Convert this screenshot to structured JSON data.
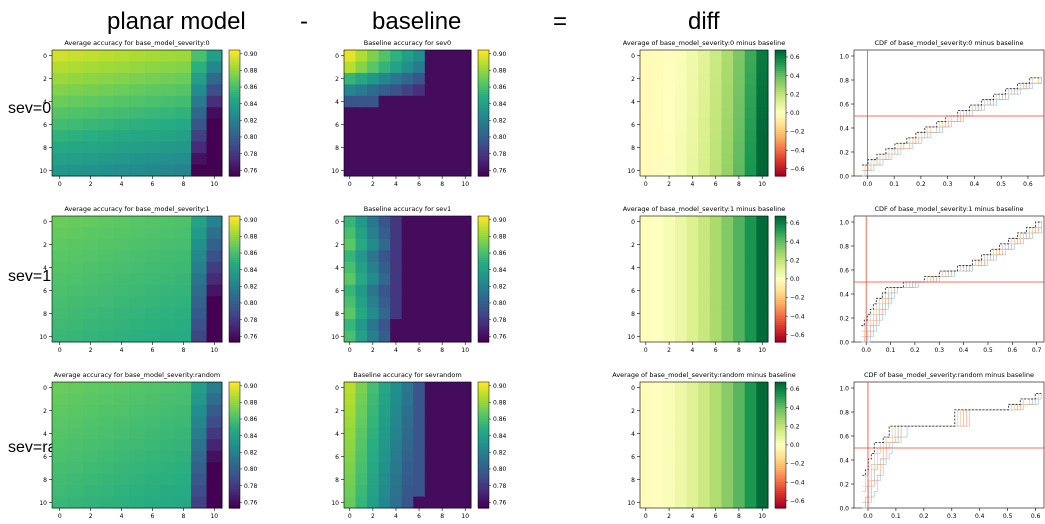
{
  "headers": {
    "planar": "planar model",
    "minus": "-",
    "baseline": "baseline",
    "equals": "=",
    "diff": "diff"
  },
  "rows": [
    {
      "label": "sev=0"
    },
    {
      "label": "sev=1"
    },
    {
      "label": "sev=rand"
    }
  ],
  "chart_data": [
    {
      "type": "heatmap",
      "panel": "planar-sev0",
      "title": "Average accuracy for base_model_severity:0",
      "cmap": "viridis",
      "clim": [
        0.75,
        0.9
      ],
      "colorbar_ticks": [
        "0.90",
        "0.88",
        "0.86",
        "0.84",
        "0.82",
        "0.80",
        "0.78",
        "0.76"
      ],
      "x_ticks": [
        "0",
        "2",
        "4",
        "6",
        "8",
        "10"
      ],
      "y_ticks": [
        "0",
        "2",
        "4",
        "6",
        "8",
        "10"
      ]
    },
    {
      "type": "heatmap",
      "panel": "baseline-sev0",
      "title": "Baseline accuracy for sev0",
      "cmap": "viridis",
      "clim": [
        0.75,
        0.9
      ],
      "colorbar_ticks": [
        "0.90",
        "0.88",
        "0.86",
        "0.84",
        "0.82",
        "0.80",
        "0.78",
        "0.76"
      ],
      "x_ticks": [
        "0",
        "2",
        "4",
        "6",
        "8",
        "10"
      ],
      "y_ticks": [
        "0",
        "2",
        "4",
        "6",
        "8",
        "10"
      ]
    },
    {
      "type": "heatmap",
      "panel": "diff-sev0",
      "title": "Average of base_model_severity:0 minus baseline",
      "cmap": "RdYlGn",
      "clim": [
        -0.65,
        0.65
      ],
      "colorbar_ticks": [
        "0.6",
        "0.4",
        "0.2",
        "0.0",
        "−0.2",
        "−0.4",
        "−0.6"
      ],
      "x_ticks": [
        "0",
        "2",
        "4",
        "6",
        "8",
        "10"
      ],
      "y_ticks": [
        "0",
        "2",
        "4",
        "6",
        "8",
        "10"
      ]
    },
    {
      "type": "line",
      "panel": "cdf-sev0",
      "title": "CDF of base_model_severity:0 minus baseline",
      "x_ticks": [
        "0.0",
        "0.1",
        "0.2",
        "0.3",
        "0.4",
        "0.5",
        "0.6"
      ],
      "y_ticks": [
        "0.0",
        "0.2",
        "0.4",
        "0.6",
        "0.8",
        "1.0"
      ],
      "xlim": [
        -0.05,
        0.66
      ],
      "ylim": [
        0,
        1.05
      ],
      "vline": 0.0,
      "hline": 0.5
    },
    {
      "type": "heatmap",
      "panel": "planar-sev1",
      "title": "Average accuracy for base_model_severity:1",
      "cmap": "viridis",
      "clim": [
        0.75,
        0.9
      ],
      "colorbar_ticks": [
        "0.90",
        "0.88",
        "0.86",
        "0.84",
        "0.82",
        "0.80",
        "0.78",
        "0.76"
      ],
      "x_ticks": [
        "0",
        "2",
        "4",
        "6",
        "8",
        "10"
      ],
      "y_ticks": [
        "0",
        "2",
        "4",
        "6",
        "8",
        "10"
      ]
    },
    {
      "type": "heatmap",
      "panel": "baseline-sev1",
      "title": "Baseline accuracy for sev1",
      "cmap": "viridis",
      "clim": [
        0.75,
        0.9
      ],
      "colorbar_ticks": [
        "0.90",
        "0.88",
        "0.86",
        "0.84",
        "0.82",
        "0.80",
        "0.78",
        "0.76"
      ],
      "x_ticks": [
        "0",
        "2",
        "4",
        "6",
        "8",
        "10"
      ],
      "y_ticks": [
        "0",
        "2",
        "4",
        "6",
        "8",
        "10"
      ]
    },
    {
      "type": "heatmap",
      "panel": "diff-sev1",
      "title": "Average of base_model_severity:1 minus baseline",
      "cmap": "RdYlGn",
      "clim": [
        -0.65,
        0.65
      ],
      "colorbar_ticks": [
        "0.6",
        "0.4",
        "0.2",
        "0.0",
        "−0.2",
        "−0.4",
        "−0.6"
      ],
      "x_ticks": [
        "0",
        "2",
        "4",
        "6",
        "8",
        "10"
      ],
      "y_ticks": [
        "0",
        "2",
        "4",
        "6",
        "8",
        "10"
      ]
    },
    {
      "type": "line",
      "panel": "cdf-sev1",
      "title": "CDF of base_model_severity:1 minus baseline",
      "x_ticks": [
        "0.0",
        "0.1",
        "0.2",
        "0.3",
        "0.4",
        "0.5",
        "0.6",
        "0.7"
      ],
      "y_ticks": [
        "0.0",
        "0.2",
        "0.4",
        "0.6",
        "0.8",
        "1.0"
      ],
      "xlim": [
        -0.05,
        0.73
      ],
      "ylim": [
        0,
        1.05
      ],
      "vline": 0.0,
      "hline": 0.5
    },
    {
      "type": "heatmap",
      "panel": "planar-sevrand",
      "title": "Average accuracy for base_model_severity:random",
      "cmap": "viridis",
      "clim": [
        0.75,
        0.9
      ],
      "colorbar_ticks": [
        "0.90",
        "0.88",
        "0.86",
        "0.84",
        "0.82",
        "0.80",
        "0.78",
        "0.76"
      ],
      "x_ticks": [
        "0",
        "2",
        "4",
        "6",
        "8",
        "10"
      ],
      "y_ticks": [
        "0",
        "2",
        "4",
        "6",
        "8",
        "10"
      ]
    },
    {
      "type": "heatmap",
      "panel": "baseline-sevrand",
      "title": "Baseline accuracy for sevrandom",
      "cmap": "viridis",
      "clim": [
        0.75,
        0.9
      ],
      "colorbar_ticks": [
        "0.90",
        "0.88",
        "0.86",
        "0.84",
        "0.82",
        "0.80",
        "0.78",
        "0.76"
      ],
      "x_ticks": [
        "0",
        "2",
        "4",
        "6",
        "8",
        "10"
      ],
      "y_ticks": [
        "0",
        "2",
        "4",
        "6",
        "8",
        "10"
      ]
    },
    {
      "type": "heatmap",
      "panel": "diff-sevrand",
      "title": "Average of base_model_severity:random minus baseline",
      "cmap": "RdYlGn",
      "clim": [
        -0.6,
        0.6
      ],
      "colorbar_ticks": [
        "0.6",
        "0.4",
        "0.2",
        "0.0",
        "−0.2",
        "−0.4",
        "−0.6"
      ],
      "x_ticks": [
        "0",
        "2",
        "4",
        "6",
        "8",
        "10"
      ],
      "y_ticks": [
        "0",
        "2",
        "4",
        "6",
        "8",
        "10"
      ]
    },
    {
      "type": "line",
      "panel": "cdf-sevrand",
      "title": "CDF of base_model_severity:random minus baseline",
      "x_ticks": [
        "0.0",
        "0.1",
        "0.2",
        "0.3",
        "0.4",
        "0.5",
        "0.6"
      ],
      "y_ticks": [
        "0.0",
        "0.2",
        "0.4",
        "0.6",
        "0.8",
        "1.0"
      ],
      "xlim": [
        -0.05,
        0.63
      ],
      "ylim": [
        0,
        1.05
      ],
      "vline": 0.0,
      "hline": 0.5
    }
  ]
}
